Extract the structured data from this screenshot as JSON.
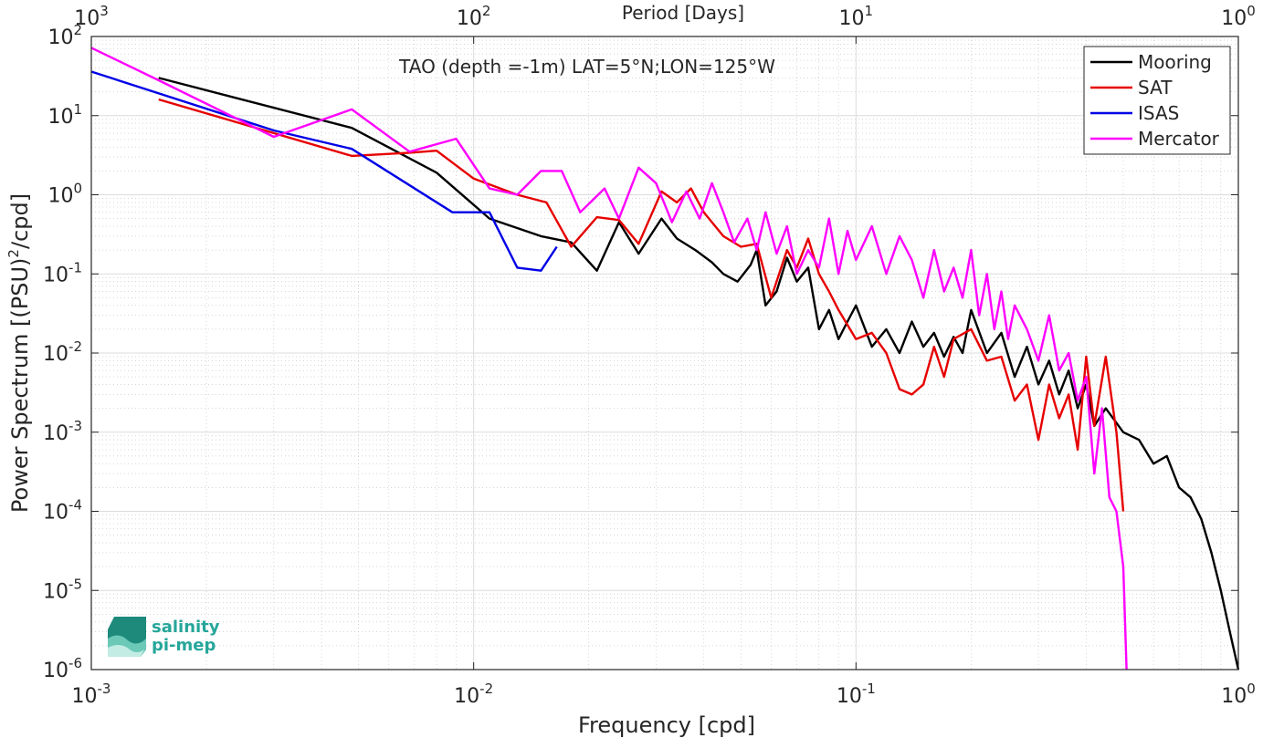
{
  "chart_data": {
    "type": "line",
    "title": "TAO (depth =-1m) LAT=5°N;LON=125°W",
    "xlabel": "Frequency [cpd]",
    "ylabel_main": "Power Spectrum [(PSU)",
    "ylabel_sup": "2",
    "ylabel_tail": "/cpd]",
    "top_axis_label": "Period [Days]",
    "xscale": "log",
    "yscale": "log",
    "xlim": [
      0.001,
      1
    ],
    "ylim": [
      1e-06,
      100
    ],
    "grid": true,
    "legend_position": "top-right",
    "x_ticks": [
      {
        "value": 0.001,
        "base": "10",
        "exp": "-3"
      },
      {
        "value": 0.01,
        "base": "10",
        "exp": "-2"
      },
      {
        "value": 0.1,
        "base": "10",
        "exp": "-1"
      },
      {
        "value": 1,
        "base": "10",
        "exp": "0"
      }
    ],
    "top_ticks": [
      {
        "freq": 0.001,
        "base": "10",
        "exp": "3"
      },
      {
        "freq": 0.01,
        "base": "10",
        "exp": "2"
      },
      {
        "freq": 0.1,
        "base": "10",
        "exp": "1"
      },
      {
        "freq": 1,
        "base": "10",
        "exp": "0"
      }
    ],
    "y_ticks": [
      {
        "value": 100,
        "base": "10",
        "exp": "2"
      },
      {
        "value": 10,
        "base": "10",
        "exp": "1"
      },
      {
        "value": 1,
        "base": "10",
        "exp": "0"
      },
      {
        "value": 0.1,
        "base": "10",
        "exp": "-1"
      },
      {
        "value": 0.01,
        "base": "10",
        "exp": "-2"
      },
      {
        "value": 0.001,
        "base": "10",
        "exp": "-3"
      },
      {
        "value": 0.0001,
        "base": "10",
        "exp": "-4"
      },
      {
        "value": 1e-05,
        "base": "10",
        "exp": "-5"
      },
      {
        "value": 1e-06,
        "base": "10",
        "exp": "-6"
      }
    ],
    "series": [
      {
        "name": "Mooring",
        "color": "#000000",
        "points": [
          [
            0.0015,
            30
          ],
          [
            0.0048,
            7
          ],
          [
            0.008,
            1.9
          ],
          [
            0.011,
            0.5
          ],
          [
            0.015,
            0.3
          ],
          [
            0.018,
            0.25
          ],
          [
            0.021,
            0.11
          ],
          [
            0.024,
            0.45
          ],
          [
            0.027,
            0.18
          ],
          [
            0.031,
            0.5
          ],
          [
            0.034,
            0.28
          ],
          [
            0.038,
            0.2
          ],
          [
            0.042,
            0.14
          ],
          [
            0.045,
            0.1
          ],
          [
            0.049,
            0.08
          ],
          [
            0.053,
            0.13
          ],
          [
            0.055,
            0.2
          ],
          [
            0.058,
            0.04
          ],
          [
            0.062,
            0.06
          ],
          [
            0.066,
            0.16
          ],
          [
            0.07,
            0.08
          ],
          [
            0.075,
            0.12
          ],
          [
            0.08,
            0.02
          ],
          [
            0.085,
            0.035
          ],
          [
            0.09,
            0.015
          ],
          [
            0.095,
            0.025
          ],
          [
            0.1,
            0.04
          ],
          [
            0.11,
            0.012
          ],
          [
            0.12,
            0.02
          ],
          [
            0.13,
            0.01
          ],
          [
            0.14,
            0.025
          ],
          [
            0.15,
            0.012
          ],
          [
            0.16,
            0.018
          ],
          [
            0.17,
            0.009
          ],
          [
            0.18,
            0.016
          ],
          [
            0.19,
            0.01
          ],
          [
            0.2,
            0.035
          ],
          [
            0.22,
            0.01
          ],
          [
            0.24,
            0.018
          ],
          [
            0.26,
            0.005
          ],
          [
            0.28,
            0.012
          ],
          [
            0.3,
            0.004
          ],
          [
            0.32,
            0.008
          ],
          [
            0.34,
            0.003
          ],
          [
            0.36,
            0.006
          ],
          [
            0.38,
            0.002
          ],
          [
            0.4,
            0.004
          ],
          [
            0.42,
            0.0012
          ],
          [
            0.45,
            0.002
          ],
          [
            0.5,
            0.001
          ],
          [
            0.55,
            0.0008
          ],
          [
            0.6,
            0.0004
          ],
          [
            0.65,
            0.0005
          ],
          [
            0.7,
            0.0002
          ],
          [
            0.75,
            0.00015
          ],
          [
            0.8,
            8e-05
          ],
          [
            0.85,
            3e-05
          ],
          [
            0.9,
            1e-05
          ],
          [
            0.95,
            3e-06
          ],
          [
            1.0,
            1e-06
          ]
        ]
      },
      {
        "name": "SAT",
        "color": "#e60000",
        "points": [
          [
            0.0015,
            16
          ],
          [
            0.0048,
            3.1
          ],
          [
            0.0068,
            3.4
          ],
          [
            0.008,
            3.6
          ],
          [
            0.01,
            1.6
          ],
          [
            0.013,
            1.0
          ],
          [
            0.0155,
            0.8
          ],
          [
            0.018,
            0.22
          ],
          [
            0.021,
            0.52
          ],
          [
            0.024,
            0.48
          ],
          [
            0.027,
            0.24
          ],
          [
            0.031,
            1.1
          ],
          [
            0.034,
            0.8
          ],
          [
            0.037,
            1.2
          ],
          [
            0.04,
            0.6
          ],
          [
            0.045,
            0.3
          ],
          [
            0.05,
            0.22
          ],
          [
            0.055,
            0.24
          ],
          [
            0.06,
            0.05
          ],
          [
            0.066,
            0.2
          ],
          [
            0.07,
            0.12
          ],
          [
            0.075,
            0.28
          ],
          [
            0.08,
            0.1
          ],
          [
            0.085,
            0.06
          ],
          [
            0.09,
            0.035
          ],
          [
            0.1,
            0.015
          ],
          [
            0.11,
            0.018
          ],
          [
            0.12,
            0.01
          ],
          [
            0.13,
            0.0035
          ],
          [
            0.14,
            0.003
          ],
          [
            0.15,
            0.004
          ],
          [
            0.16,
            0.012
          ],
          [
            0.17,
            0.005
          ],
          [
            0.18,
            0.015
          ],
          [
            0.2,
            0.02
          ],
          [
            0.22,
            0.008
          ],
          [
            0.24,
            0.009
          ],
          [
            0.26,
            0.0025
          ],
          [
            0.28,
            0.004
          ],
          [
            0.3,
            0.0008
          ],
          [
            0.32,
            0.004
          ],
          [
            0.34,
            0.0015
          ],
          [
            0.36,
            0.003
          ],
          [
            0.38,
            0.0006
          ],
          [
            0.4,
            0.009
          ],
          [
            0.42,
            0.0012
          ],
          [
            0.45,
            0.009
          ],
          [
            0.48,
            0.001
          ],
          [
            0.5,
            0.0001
          ]
        ]
      },
      {
        "name": "ISAS",
        "color": "#0000e6",
        "points": [
          [
            0.001,
            36
          ],
          [
            0.003,
            6.5
          ],
          [
            0.0048,
            3.8
          ],
          [
            0.0088,
            0.6
          ],
          [
            0.011,
            0.6
          ],
          [
            0.013,
            0.12
          ],
          [
            0.015,
            0.11
          ],
          [
            0.0165,
            0.22
          ]
        ]
      },
      {
        "name": "Mercator",
        "color": "#ff00ff",
        "points": [
          [
            0.001,
            72
          ],
          [
            0.0015,
            28
          ],
          [
            0.003,
            5.4
          ],
          [
            0.0048,
            12
          ],
          [
            0.0068,
            3.5
          ],
          [
            0.009,
            5.1
          ],
          [
            0.011,
            1.2
          ],
          [
            0.013,
            1.0
          ],
          [
            0.015,
            2.0
          ],
          [
            0.017,
            2.0
          ],
          [
            0.019,
            0.6
          ],
          [
            0.022,
            1.2
          ],
          [
            0.024,
            0.5
          ],
          [
            0.027,
            2.2
          ],
          [
            0.03,
            1.4
          ],
          [
            0.033,
            0.45
          ],
          [
            0.036,
            1.1
          ],
          [
            0.039,
            0.5
          ],
          [
            0.042,
            1.4
          ],
          [
            0.045,
            0.6
          ],
          [
            0.048,
            0.25
          ],
          [
            0.052,
            0.5
          ],
          [
            0.055,
            0.2
          ],
          [
            0.058,
            0.6
          ],
          [
            0.062,
            0.18
          ],
          [
            0.066,
            0.4
          ],
          [
            0.07,
            0.1
          ],
          [
            0.075,
            0.2
          ],
          [
            0.08,
            0.12
          ],
          [
            0.085,
            0.5
          ],
          [
            0.09,
            0.1
          ],
          [
            0.095,
            0.35
          ],
          [
            0.1,
            0.15
          ],
          [
            0.11,
            0.4
          ],
          [
            0.12,
            0.1
          ],
          [
            0.13,
            0.3
          ],
          [
            0.14,
            0.15
          ],
          [
            0.15,
            0.05
          ],
          [
            0.16,
            0.2
          ],
          [
            0.17,
            0.06
          ],
          [
            0.18,
            0.12
          ],
          [
            0.19,
            0.05
          ],
          [
            0.2,
            0.2
          ],
          [
            0.21,
            0.03
          ],
          [
            0.22,
            0.1
          ],
          [
            0.23,
            0.02
          ],
          [
            0.24,
            0.06
          ],
          [
            0.25,
            0.015
          ],
          [
            0.26,
            0.04
          ],
          [
            0.28,
            0.02
          ],
          [
            0.3,
            0.008
          ],
          [
            0.32,
            0.03
          ],
          [
            0.34,
            0.006
          ],
          [
            0.36,
            0.01
          ],
          [
            0.38,
            0.0025
          ],
          [
            0.4,
            0.005
          ],
          [
            0.42,
            0.0003
          ],
          [
            0.44,
            0.002
          ],
          [
            0.46,
            0.00015
          ],
          [
            0.48,
            0.0001
          ],
          [
            0.5,
            2e-05
          ],
          [
            0.51,
            1e-06
          ]
        ]
      }
    ]
  },
  "logo": {
    "line1": "salinity",
    "line2": "pi-mep",
    "color": "#26a69a"
  }
}
